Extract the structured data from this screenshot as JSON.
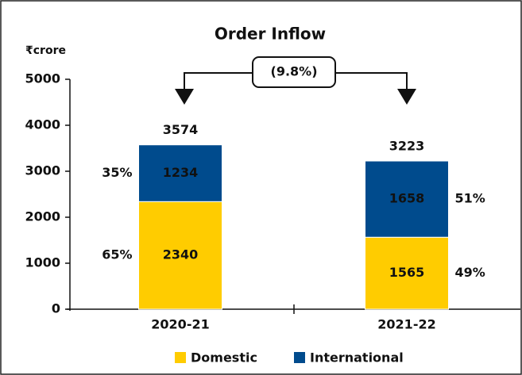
{
  "chart_data": {
    "type": "stacked_bar",
    "title": "Order Inflow",
    "y_label": "₹crore",
    "categories": [
      "2020-21",
      "2021-22"
    ],
    "series": [
      {
        "name": "Domestic",
        "color": "#ffcc00",
        "values": [
          2340,
          1565
        ],
        "share_labels": [
          "65%",
          "49%"
        ]
      },
      {
        "name": "International",
        "color": "#004b8d",
        "values": [
          1234,
          1658
        ],
        "share_labels": [
          "35%",
          "51%"
        ]
      }
    ],
    "totals": [
      3574,
      3223
    ],
    "annotation": "(9.8%)",
    "ylim": [
      0,
      5000
    ],
    "yticks": [
      0,
      1000,
      2000,
      3000,
      4000,
      5000
    ]
  }
}
